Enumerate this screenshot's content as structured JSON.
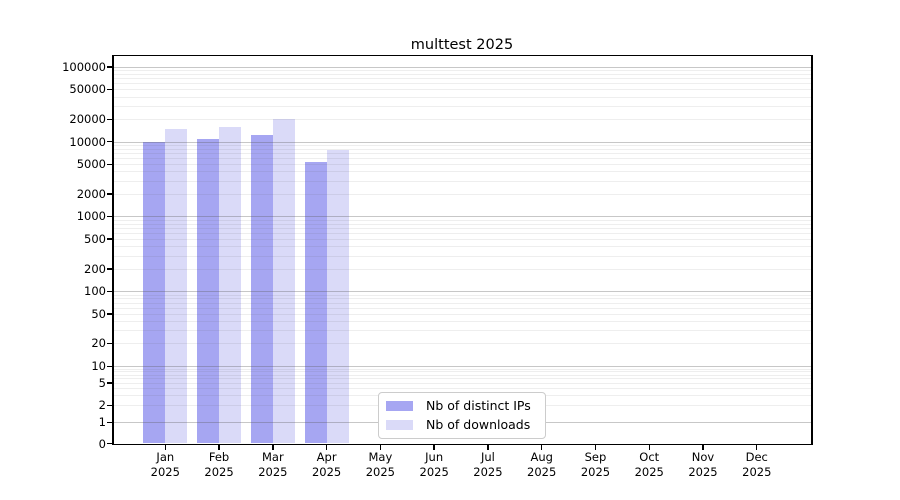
{
  "chart_data": {
    "type": "bar",
    "title": "multtest 2025",
    "categories": [
      "Jan",
      "Feb",
      "Mar",
      "Apr",
      "May",
      "Jun",
      "Jul",
      "Aug",
      "Sep",
      "Oct",
      "Nov",
      "Dec"
    ],
    "year_label": "2025",
    "series": [
      {
        "name": "Nb of distinct IPs",
        "color": "#a6a6f2",
        "values": [
          10000,
          10900,
          12400,
          5300,
          0,
          0,
          0,
          0,
          0,
          0,
          0,
          0
        ]
      },
      {
        "name": "Nb of downloads",
        "color": "#dadaf8",
        "values": [
          14800,
          15900,
          19800,
          7700,
          0,
          0,
          0,
          0,
          0,
          0,
          0,
          0
        ]
      }
    ],
    "y_ticks": [
      0,
      1,
      2,
      5,
      10,
      20,
      50,
      100,
      200,
      500,
      1000,
      2000,
      5000,
      10000,
      20000,
      50000,
      100000
    ],
    "y_scale": "symlog",
    "ylim": [
      0,
      140000
    ],
    "grid": "both-horizontal",
    "legend_position": "lower-center"
  }
}
